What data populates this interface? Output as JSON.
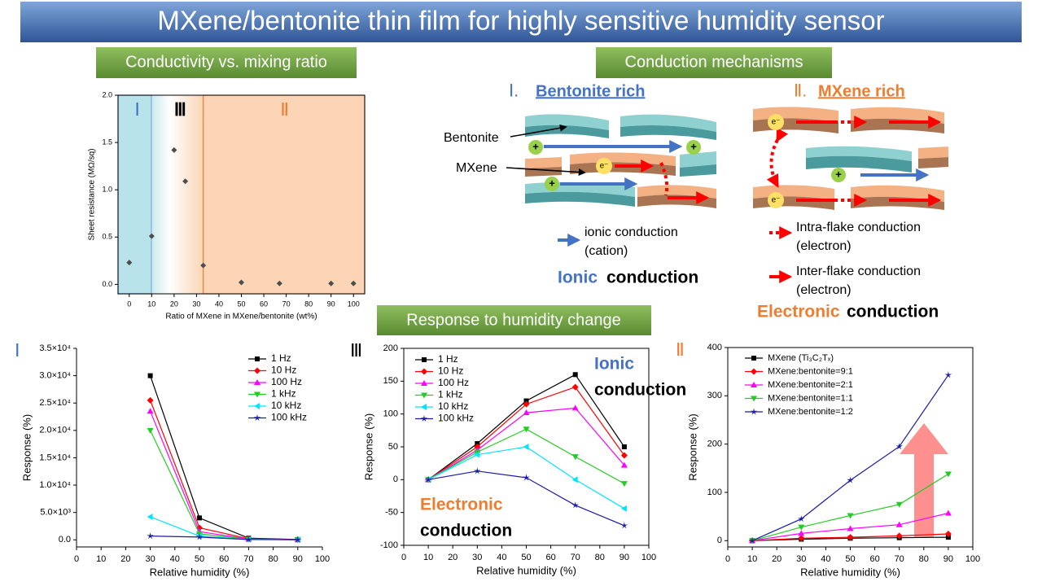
{
  "title": "MXene/bentonite thin film for highly sensitive humidity sensor",
  "sections": [
    "Conductivity vs. mixing ratio",
    "Conduction mechanisms",
    "Response to humidity change"
  ],
  "mechanisms": {
    "bentonite_rich": {
      "numeral": "Ⅰ.",
      "heading": "Bentonite rich",
      "label_bentonite": "Bentonite",
      "label_mxene": "MXene",
      "legend_line1": "ionic conduction",
      "legend_line2": "(cation)",
      "summary_word": "Ionic",
      "summary_rest": "conduction"
    },
    "mxene_rich": {
      "numeral": "Ⅱ.",
      "heading": "MXene rich",
      "intra_line1": "Intra-flake conduction",
      "intra_line2": "(electron)",
      "inter_line1": "Inter-flake conduction",
      "inter_line2": "(electron)",
      "summary_word": "Electronic",
      "summary_rest": "conduction"
    },
    "cation_symbol": "+",
    "electron_symbol": "e⁻"
  },
  "chart_data": [
    {
      "type": "scatter",
      "xlabel": "Ratio of MXene in MXene/bentonite (wt%)",
      "ylabel": "Sheet resistance (MΩ/sq)",
      "x": [
        0,
        10,
        20,
        25,
        33,
        50,
        67,
        90,
        100
      ],
      "series": [
        {
          "name": null,
          "color": "#4d4d4d",
          "marker": "diamond",
          "values": [
            0.23,
            0.51,
            1.42,
            1.09,
            0.2,
            0.02,
            0.01,
            0.01,
            0.01
          ]
        }
      ],
      "xlim": [
        -5,
        105
      ],
      "ylim": [
        -0.1,
        2.0
      ],
      "xticks": [
        0,
        10,
        20,
        30,
        40,
        50,
        60,
        70,
        80,
        90,
        100
      ],
      "yticks": [
        {
          "value": 0,
          "label": "0.0"
        },
        0.5,
        {
          "value": 1,
          "label": "1.0"
        },
        1.5,
        {
          "value": 2,
          "label": "2.0"
        }
      ],
      "regions": [
        {
          "label": "Ⅰ",
          "from": -5,
          "to": 10,
          "color": "#b9e3ea",
          "label_color": "#4472c4"
        },
        {
          "label": "Ⅲ",
          "from": 10,
          "to": 33,
          "color": "gradient",
          "label_color": "#000000"
        },
        {
          "label": "Ⅱ",
          "from": 33,
          "to": 105,
          "color": "#fbd5b5",
          "label_color": "#ed7d31"
        }
      ]
    },
    {
      "type": "line",
      "panel_label": "Ⅰ",
      "panel_color": "#4472c4",
      "xlabel": "Relative humidity (%)",
      "ylabel": "Response (%)",
      "x": [
        30,
        50,
        70,
        90
      ],
      "series": [
        {
          "name": "1 Hz",
          "color": "#000000",
          "marker": "square",
          "values": [
            30000,
            4000,
            300,
            50
          ]
        },
        {
          "name": "10 Hz",
          "color": "#ff0000",
          "marker": "diamond",
          "values": [
            25500,
            2200,
            200,
            30
          ]
        },
        {
          "name": "100 Hz",
          "color": "#ff00ff",
          "marker": "tri-up",
          "values": [
            23500,
            1500,
            150,
            20
          ]
        },
        {
          "name": "1 kHz",
          "color": "#22cc22",
          "marker": "tri-down",
          "values": [
            20000,
            1100,
            100,
            10
          ]
        },
        {
          "name": "10 kHz",
          "color": "#00e5ff",
          "marker": "tri-left",
          "values": [
            4200,
            700,
            80,
            5
          ]
        },
        {
          "name": "100 kHz",
          "color": "#1a1aa6",
          "marker": "star",
          "values": [
            700,
            500,
            50,
            5
          ]
        }
      ],
      "xlim": [
        0,
        100
      ],
      "ylim": [
        -1300,
        35000
      ],
      "xticks": [
        0,
        10,
        20,
        30,
        40,
        50,
        60,
        70,
        80,
        90,
        100
      ],
      "yticks": [
        {
          "value": 0,
          "label": "0.0"
        },
        {
          "value": 5000,
          "label": "5.0×10³"
        },
        {
          "value": 10000,
          "label": "1.0×10⁴"
        },
        {
          "value": 15000,
          "label": "1.5×10⁴"
        },
        {
          "value": 20000,
          "label": "2.0×10⁴"
        },
        {
          "value": 25000,
          "label": "2.5×10⁴"
        },
        {
          "value": 30000,
          "label": "3.0×10⁴"
        },
        {
          "value": 35000,
          "label": "3.5×10⁴"
        }
      ]
    },
    {
      "type": "line",
      "panel_label": "Ⅲ",
      "panel_color": "#000000",
      "xlabel": "Relative humidity (%)",
      "ylabel": "Response (%)",
      "x": [
        10,
        30,
        50,
        70,
        90
      ],
      "series": [
        {
          "name": "1 Hz",
          "color": "#000000",
          "marker": "square",
          "values": [
            0,
            55,
            120,
            160,
            50
          ]
        },
        {
          "name": "10 Hz",
          "color": "#ff0000",
          "marker": "diamond",
          "values": [
            0,
            50,
            115,
            141,
            37
          ]
        },
        {
          "name": "100 Hz",
          "color": "#ff00ff",
          "marker": "tri-up",
          "values": [
            0,
            45,
            102,
            109,
            22
          ]
        },
        {
          "name": "1 kHz",
          "color": "#22cc22",
          "marker": "tri-down",
          "values": [
            0,
            42,
            77,
            35,
            -6
          ]
        },
        {
          "name": "10 kHz",
          "color": "#00e5ff",
          "marker": "tri-left",
          "values": [
            0,
            38,
            50,
            0,
            -44
          ]
        },
        {
          "name": "100 kHz",
          "color": "#1a1aa6",
          "marker": "star",
          "values": [
            0,
            13,
            3,
            -39,
            -70
          ]
        }
      ],
      "xlim": [
        0,
        100
      ],
      "ylim": [
        -100,
        200
      ],
      "xticks": [
        0,
        10,
        20,
        30,
        40,
        50,
        60,
        70,
        80,
        90,
        100
      ],
      "yticks": [
        -100,
        -50,
        0,
        50,
        100,
        150,
        200
      ],
      "annotations": [
        {
          "text": "Ionic",
          "color": "#4472c4"
        },
        {
          "text": "conduction",
          "color": "#000000"
        },
        {
          "text": "Electronic",
          "color": "#ed7d31"
        },
        {
          "text": "conduction",
          "color": "#000000"
        }
      ]
    },
    {
      "type": "line",
      "panel_label": "Ⅱ",
      "panel_color": "#ed7d31",
      "xlabel": "Relative humidity (%)",
      "ylabel": "Response (%)",
      "x": [
        10,
        30,
        50,
        70,
        90
      ],
      "series": [
        {
          "name": "MXene (Ti₃C₂Tₓ)",
          "color": "#000000",
          "marker": "square",
          "values": [
            0,
            3,
            5,
            6,
            7
          ]
        },
        {
          "name": "MXene:bentonite=9:1",
          "color": "#ff0000",
          "marker": "diamond",
          "values": [
            0,
            5,
            7,
            10,
            14
          ]
        },
        {
          "name": "MXene:bentonite=2:1",
          "color": "#ff00ff",
          "marker": "tri-up",
          "values": [
            0,
            15,
            25,
            33,
            57
          ]
        },
        {
          "name": "MXene:bentonite=1:1",
          "color": "#22cc22",
          "marker": "tri-down",
          "values": [
            0,
            28,
            52,
            75,
            138
          ]
        },
        {
          "name": "MXene:bentonite=1:2",
          "color": "#1a1aa6",
          "marker": "star",
          "values": [
            0,
            45,
            125,
            195,
            343
          ]
        }
      ],
      "xlim": [
        0,
        100
      ],
      "ylim": [
        -13,
        400
      ],
      "xticks": [
        0,
        10,
        20,
        30,
        40,
        50,
        60,
        70,
        80,
        90,
        100
      ],
      "yticks": [
        0,
        100,
        200,
        300,
        400
      ]
    }
  ]
}
